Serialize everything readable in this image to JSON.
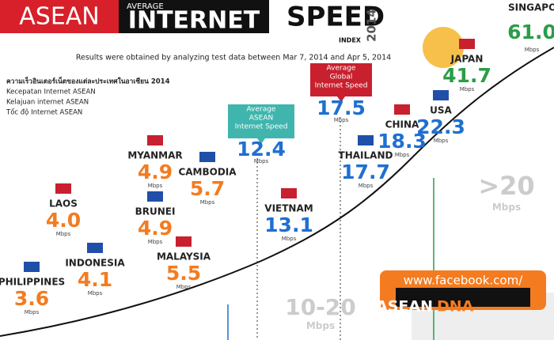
{
  "header": {
    "brand": "ASEAN",
    "kicker": "AVERAGE",
    "word1": "INTERNET",
    "word2": "SPEED",
    "index": "INDEX",
    "year": "2014",
    "subtitle": "Results were obtained by analyzing test data between Mar 7, 2014 and Apr 5, 2014"
  },
  "languages": [
    "ความเร็วอินเตอร์เน็ตของแต่ละประเทศในอาเซียน 2014",
    "Kecepatan Internet ASEAN",
    "Kelajuan internet ASEAN",
    "Tốc độ Internet ASEAN"
  ],
  "countries": [
    {
      "name": "PHILIPPINES",
      "speed": "3.6",
      "unit": "Mbps"
    },
    {
      "name": "LAOS",
      "speed": "4.0",
      "unit": "Mbps"
    },
    {
      "name": "INDONESIA",
      "speed": "4.1",
      "unit": "Mbps"
    },
    {
      "name": "MYANMAR",
      "speed": "4.9",
      "unit": "Mbps"
    },
    {
      "name": "BRUNEI",
      "speed": "4.9",
      "unit": "Mbps"
    },
    {
      "name": "MALAYSIA",
      "speed": "5.5",
      "unit": "Mbps"
    },
    {
      "name": "CAMBODIA",
      "speed": "5.7",
      "unit": "Mbps"
    },
    {
      "name": "VIETNAM",
      "speed": "13.1",
      "unit": "Mbps"
    },
    {
      "name": "THAILAND",
      "speed": "17.7",
      "unit": "Mbps"
    },
    {
      "name": "CHINA",
      "speed": "18.3",
      "unit": "Mbps"
    },
    {
      "name": "USA",
      "speed": "22.3",
      "unit": "Mbps"
    },
    {
      "name": "JAPAN",
      "speed": "41.7",
      "unit": "Mbps"
    },
    {
      "name": "SINGAPORE",
      "speed": "61.0",
      "unit": "Mbps"
    }
  ],
  "averages": [
    {
      "label": [
        "Average",
        "ASEAN",
        "Internet Speed"
      ],
      "speed": "12.4",
      "unit": "Mbps"
    },
    {
      "label": [
        "Average",
        "Global",
        "Internet Speed"
      ],
      "speed": "17.5",
      "unit": "Mbps"
    }
  ],
  "ranges": [
    {
      "label": ">20",
      "unit": "Mbps"
    },
    {
      "label": "10-20",
      "unit": "Mbps"
    }
  ],
  "promo": {
    "url": "www.facebook.com/",
    "brand": "ASEAN",
    "highlight": "DNA"
  }
}
